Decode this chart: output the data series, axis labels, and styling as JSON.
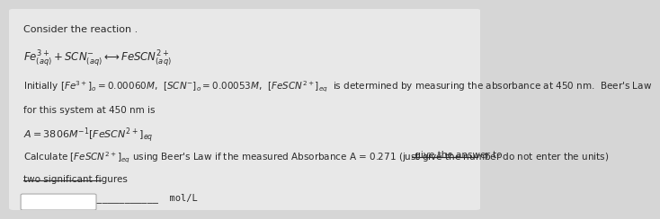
{
  "bg_color": "#d6d6d6",
  "panel_color": "#e8e8e8",
  "text_color": "#2a2a2a",
  "title": "Consider the reaction .",
  "reaction": "$Fe^{3+}_{(aq)} + SCN^{-}_{(aq)} \\longleftrightarrow FeSCN^{2+}_{(aq)}$",
  "line1": "Initially $\\left[Fe^{3+}\\right]_o = 0.00060M$,  $\\left[SCN^{-}\\right]_o = 0.00053M$,  $\\left[FeSCN^{2+}\\right]_{eq}$  is determined by measuring the absorbance at 450 nm.  Beer's Law",
  "line2": "for this system at 450 nm is",
  "line3": "$A = 3806M^{-1}\\left[FeSCN^{2+}\\right]_{eq}$",
  "line4_normal": "Calculate $\\left[FeSCN^{2+}\\right]_{eq}$ using Beer's Law if the measured Absorbance A = 0.271 (just give the number do not enter the units)",
  "line4_underline": " give the answer to",
  "line5_underline": "two significant figures",
  "input_line": "________________________  mol/L",
  "box_present": true
}
